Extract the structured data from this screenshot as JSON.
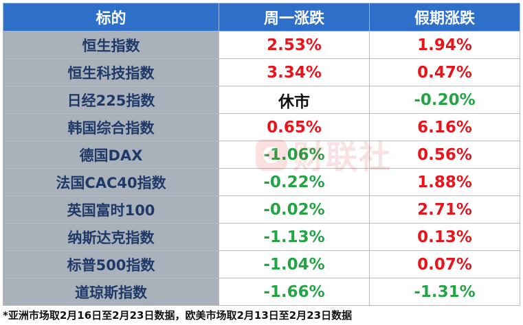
{
  "table": {
    "headers": [
      "标的",
      "周一涨跌",
      "假期涨跌"
    ],
    "rows": [
      {
        "name": "恒生指数",
        "monday": "2.53%",
        "monday_trend": "up",
        "holiday": "1.94%",
        "holiday_trend": "up"
      },
      {
        "name": "恒生科技指数",
        "monday": "3.34%",
        "monday_trend": "up",
        "holiday": "0.47%",
        "holiday_trend": "up"
      },
      {
        "name": "日经225指数",
        "monday": "休市",
        "monday_trend": "none",
        "holiday": "-0.20%",
        "holiday_trend": "down"
      },
      {
        "name": "韩国综合指数",
        "monday": "0.65%",
        "monday_trend": "up",
        "holiday": "6.16%",
        "holiday_trend": "up"
      },
      {
        "name": "德国DAX",
        "monday": "-1.06%",
        "monday_trend": "down",
        "holiday": "0.56%",
        "holiday_trend": "up"
      },
      {
        "name": "法国CAC40指数",
        "monday": "-0.22%",
        "monday_trend": "down",
        "holiday": "1.88%",
        "holiday_trend": "up"
      },
      {
        "name": "英国富时100",
        "monday": "-0.02%",
        "monday_trend": "down",
        "holiday": "2.71%",
        "holiday_trend": "up"
      },
      {
        "name": "纳斯达克指数",
        "monday": "-1.13%",
        "monday_trend": "down",
        "holiday": "0.13%",
        "holiday_trend": "up"
      },
      {
        "name": "标普500指数",
        "monday": "-1.04%",
        "monday_trend": "down",
        "holiday": "0.07%",
        "holiday_trend": "up"
      },
      {
        "name": "道琼斯指数",
        "monday": "-1.66%",
        "monday_trend": "down",
        "holiday": "-1.31%",
        "holiday_trend": "down"
      }
    ]
  },
  "footnote": "*亚洲市场取2月16日至2月23日数据，欧美市场取2月13日至2月23日数据",
  "watermark": "财联社",
  "colors": {
    "header_bg": "#2e6fc9",
    "name_bg": "#a9b1bb",
    "up": "#e8141c",
    "down": "#25a445"
  }
}
